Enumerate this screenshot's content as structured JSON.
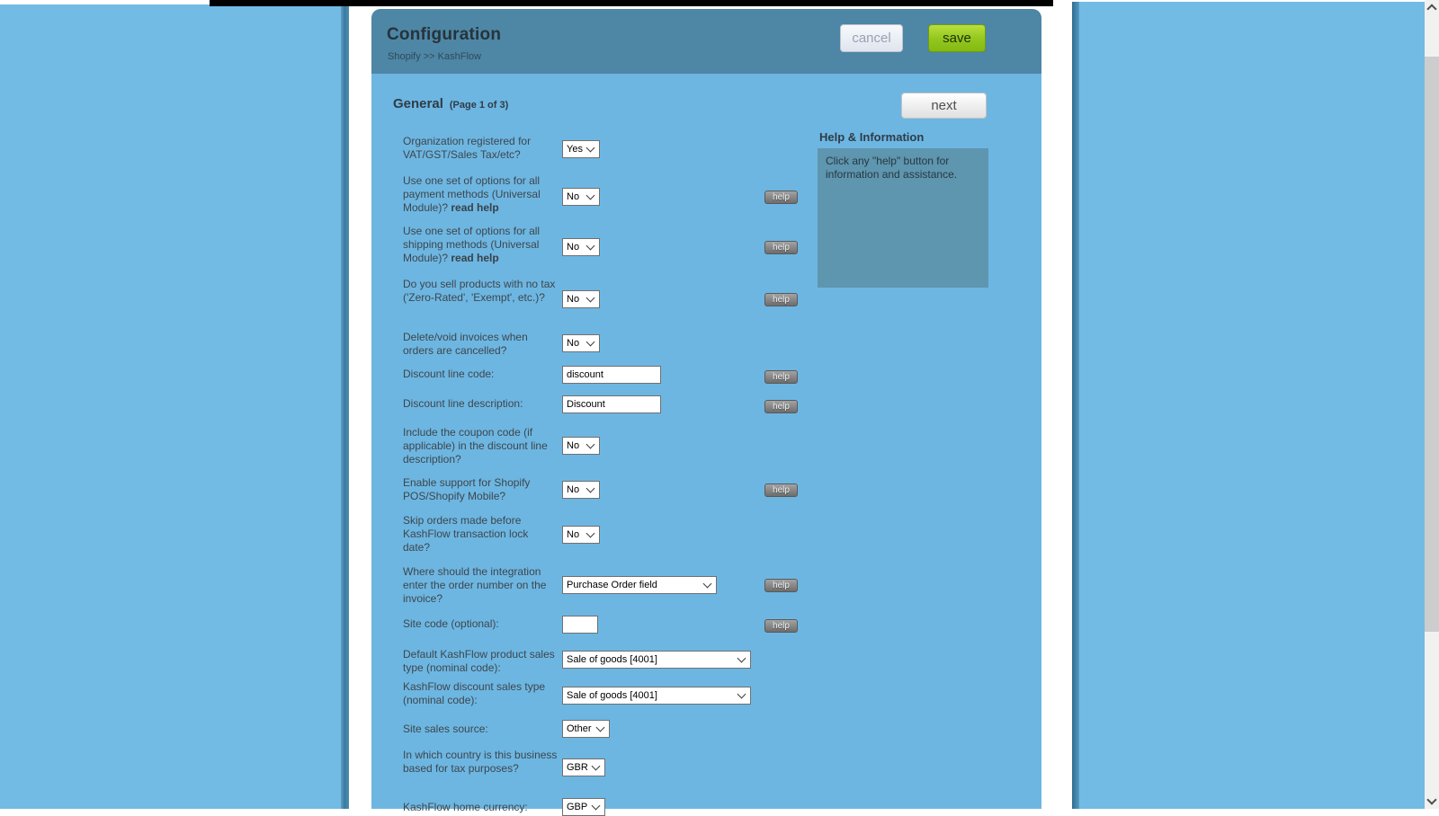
{
  "header": {
    "title": "Configuration",
    "breadcrumb": "Shopify >> KashFlow",
    "cancel_label": "cancel",
    "save_label": "save"
  },
  "page": {
    "section_title": "General",
    "page_indicator": "(Page 1 of 3)",
    "next_label": "next"
  },
  "help_panel": {
    "title": "Help & Information",
    "body": "Click any \"help\" button for information and assistance."
  },
  "help_button_label": "help",
  "form": {
    "rows": [
      {
        "name": "vat-registered",
        "label": "Organization registered for VAT/GST/Sales Tax/etc?",
        "control": "select",
        "value": "Yes",
        "help": false
      },
      {
        "name": "universal-payment",
        "label": "Use one set of options for all payment methods (Universal Module)?",
        "label_bold_suffix": "read help",
        "control": "select",
        "value": "No",
        "help": true
      },
      {
        "name": "universal-shipping",
        "label": "Use one set of options for all shipping methods (Universal Module)?",
        "label_bold_suffix": "read help",
        "control": "select",
        "value": "No",
        "help": true
      },
      {
        "name": "no-tax-products",
        "label": "Do you sell products with no tax ('Zero-Rated', 'Exempt', etc.)?",
        "control": "select",
        "value": "No",
        "help": true
      },
      {
        "name": "delete-void-invoices",
        "label": "Delete/void invoices when orders are cancelled?",
        "control": "select",
        "value": "No",
        "help": false
      },
      {
        "name": "discount-line-code",
        "label": "Discount line code:",
        "control": "text",
        "value": "discount",
        "help": true
      },
      {
        "name": "discount-line-description",
        "label": "Discount line description:",
        "control": "text",
        "value": "Discount",
        "help": true
      },
      {
        "name": "coupon-code-in-description",
        "label": "Include the coupon code (if applicable) in the discount line description?",
        "control": "select",
        "value": "No",
        "help": false
      },
      {
        "name": "shopify-pos-support",
        "label": "Enable support for Shopify POS/Shopify Mobile?",
        "control": "select",
        "value": "No",
        "help": true
      },
      {
        "name": "skip-locked-orders",
        "label": "Skip orders made before KashFlow transaction lock date?",
        "control": "select",
        "value": "No",
        "help": false
      },
      {
        "name": "order-number-field",
        "label": "Where should the integration enter the order number on the invoice?",
        "control": "select",
        "value": "Purchase Order field",
        "help": true
      },
      {
        "name": "site-code",
        "label": "Site code (optional):",
        "control": "text",
        "value": "",
        "help": true
      },
      {
        "name": "default-product-sales-type",
        "label": "Default KashFlow product sales type (nominal code):",
        "control": "select",
        "value": "Sale of goods [4001]",
        "help": false
      },
      {
        "name": "discount-sales-type",
        "label": "KashFlow discount sales type (nominal code):",
        "control": "select",
        "value": "Sale of goods [4001]",
        "help": false
      },
      {
        "name": "site-sales-source",
        "label": "Site sales source:",
        "control": "select",
        "value": "Other",
        "help": false
      },
      {
        "name": "tax-country",
        "label": "In which country is this business based for tax purposes?",
        "control": "select",
        "value": "GBR",
        "help": false
      },
      {
        "name": "home-currency",
        "label": "KashFlow home currency:",
        "control": "select",
        "value": "GBP",
        "help": false
      }
    ]
  },
  "colors": {
    "outer_blue": "#72bbe5",
    "panel_blue": "#6db6e2",
    "header_blue": "#4e86a5",
    "help_box": "#5e95af",
    "save_green": "#94c81f",
    "black_bar": "#000000"
  }
}
